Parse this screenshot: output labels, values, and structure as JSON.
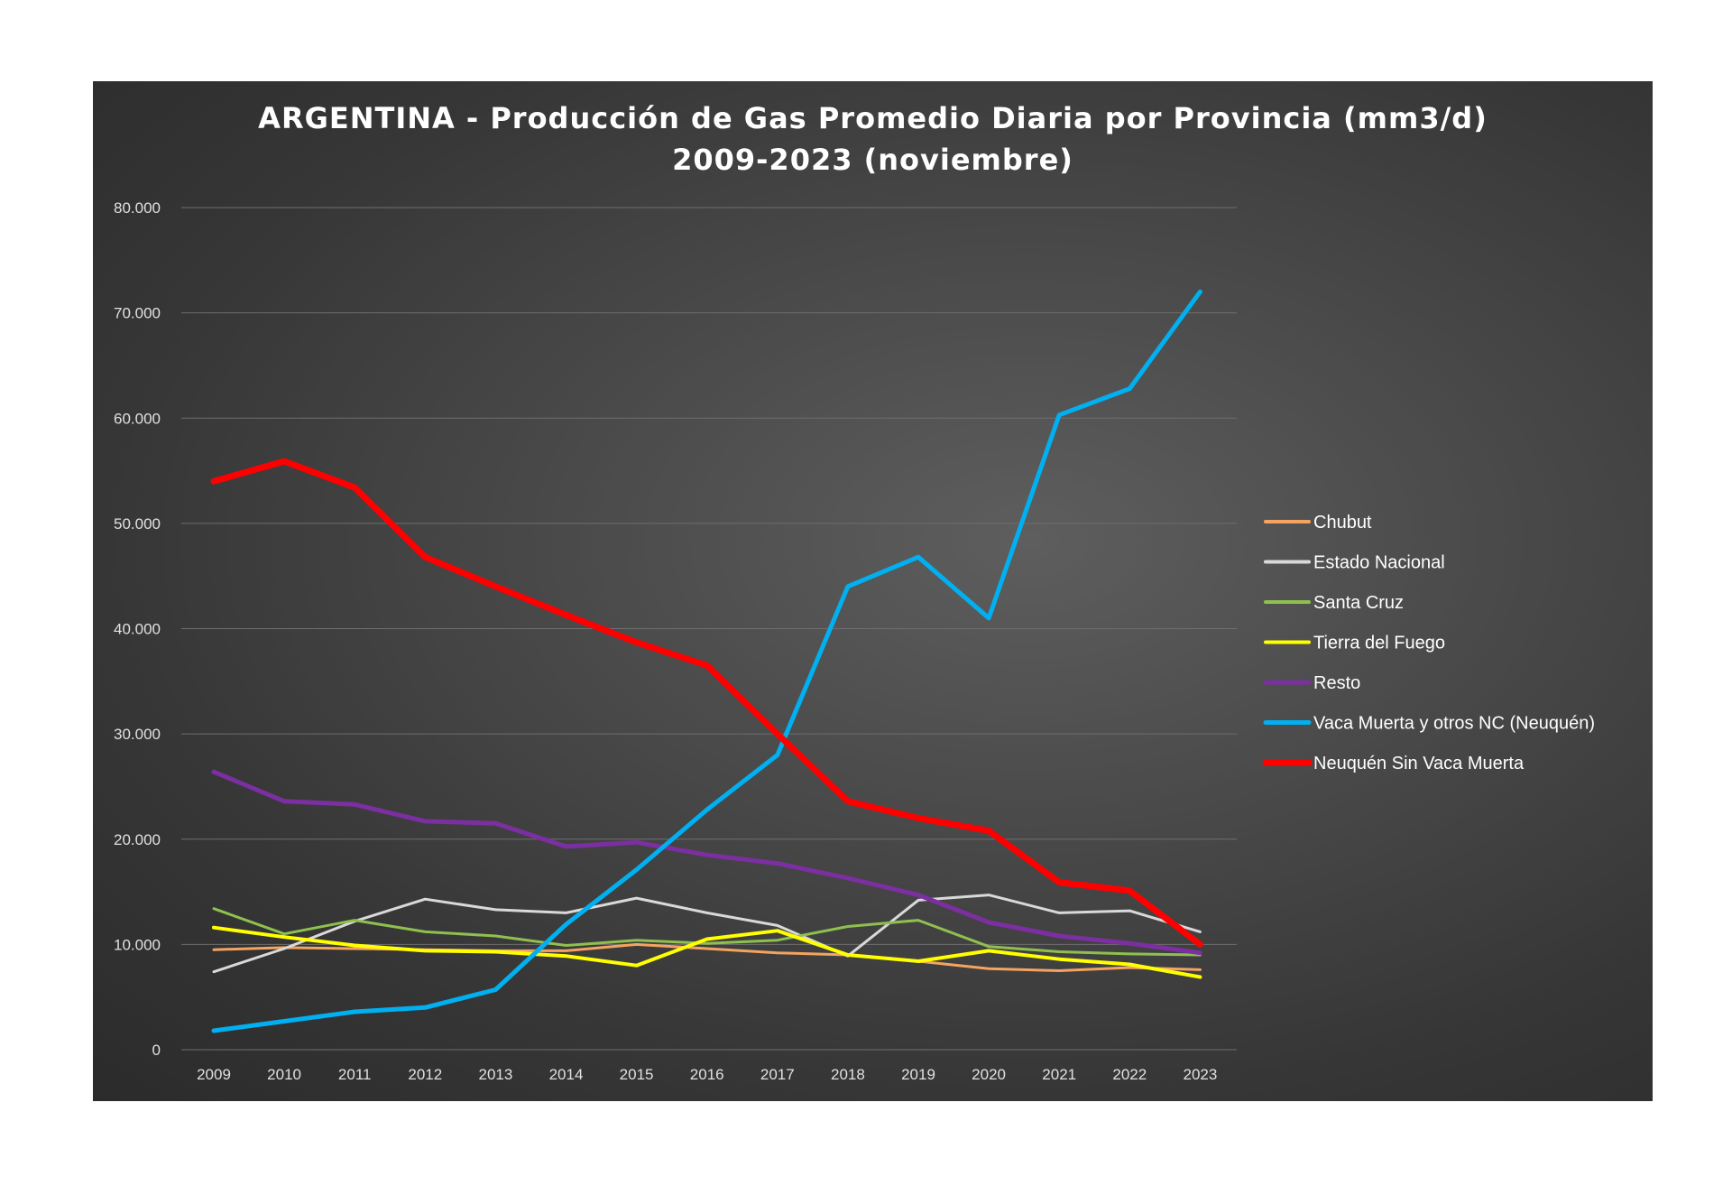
{
  "chart_data": {
    "type": "line",
    "title": "ARGENTINA - Producción de Gas Promedio Diaria por Provincia (mm3/d)",
    "subtitle": "2009-2023 (noviembre)",
    "xlabel": "",
    "ylabel": "",
    "ylim": [
      0,
      80000
    ],
    "grid": true,
    "legend_position": "right",
    "y_ticks": [
      0,
      10000,
      20000,
      30000,
      40000,
      50000,
      60000,
      70000,
      80000
    ],
    "y_tick_labels": [
      "0",
      "10.000",
      "20.000",
      "30.000",
      "40.000",
      "50.000",
      "60.000",
      "70.000",
      "80.000"
    ],
    "categories": [
      "2009",
      "2010",
      "2011",
      "2012",
      "2013",
      "2014",
      "2015",
      "2016",
      "2017",
      "2018",
      "2019",
      "2020",
      "2021",
      "2022",
      "2023"
    ],
    "series": [
      {
        "name": "Chubut",
        "color": "#f4a460",
        "width": 3,
        "values": [
          9500,
          9700,
          9600,
          9500,
          9400,
          9400,
          10000,
          9600,
          9200,
          9000,
          8400,
          7700,
          7500,
          7800,
          7600
        ]
      },
      {
        "name": "Estado Nacional",
        "color": "#d9d9d9",
        "width": 3,
        "values": [
          7400,
          9600,
          12200,
          14300,
          13300,
          13000,
          14400,
          13000,
          11800,
          8900,
          14200,
          14700,
          13000,
          13200,
          11200
        ]
      },
      {
        "name": "Santa Cruz",
        "color": "#8fc04f",
        "width": 3,
        "values": [
          13400,
          11000,
          12300,
          11200,
          10800,
          9900,
          10400,
          10100,
          10400,
          11700,
          12300,
          9800,
          9300,
          9100,
          9000
        ]
      },
      {
        "name": "Tierra del Fuego",
        "color": "#ffff00",
        "width": 4,
        "values": [
          11600,
          10700,
          9900,
          9400,
          9300,
          8900,
          8000,
          10500,
          11300,
          9000,
          8400,
          9400,
          8600,
          8100,
          6900
        ]
      },
      {
        "name": "Resto",
        "color": "#7b2fa0",
        "width": 5,
        "values": [
          26400,
          23600,
          23300,
          21700,
          21500,
          19300,
          19700,
          18500,
          17700,
          16300,
          14700,
          12100,
          10800,
          10100,
          9200
        ]
      },
      {
        "name": "Vaca Muerta y otros NC (Neuquén)",
        "color": "#00b0f0",
        "width": 5,
        "values": [
          1800,
          2700,
          3600,
          4000,
          5700,
          11900,
          17100,
          22800,
          28000,
          44000,
          46800,
          41000,
          60300,
          62800,
          72000
        ]
      },
      {
        "name": "Neuquén Sin Vaca Muerta",
        "color": "#ff0000",
        "width": 7,
        "values": [
          54000,
          55900,
          53400,
          46800,
          44000,
          41300,
          38700,
          36500,
          30000,
          23600,
          22000,
          20800,
          15900,
          15100,
          10000
        ]
      }
    ]
  }
}
